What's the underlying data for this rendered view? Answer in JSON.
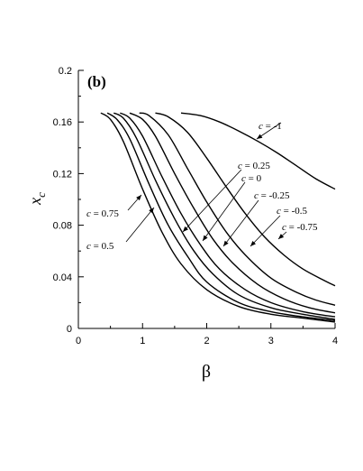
{
  "panel_label": "(b)",
  "chart_data": {
    "type": "line",
    "xlabel": "β",
    "ylabel_main": "x",
    "ylabel_sub": "c",
    "xlim": [
      0,
      4
    ],
    "ylim": [
      0,
      0.2
    ],
    "xticks": [
      "0",
      "1",
      "2",
      "3",
      "4"
    ],
    "yticks": [
      "0",
      "0.04",
      "0.08",
      "0.12",
      "0.16",
      "0.2"
    ],
    "grid": false,
    "series": [
      {
        "name": "c = 0.75",
        "x": [
          0.35,
          0.5,
          0.7,
          1.0,
          1.3,
          1.6,
          2.0,
          2.5,
          3.0,
          3.5,
          4.0
        ],
        "y": [
          0.167,
          0.162,
          0.145,
          0.108,
          0.075,
          0.05,
          0.03,
          0.017,
          0.011,
          0.008,
          0.005
        ]
      },
      {
        "name": "c = 0.5",
        "x": [
          0.45,
          0.6,
          0.8,
          1.1,
          1.4,
          1.7,
          2.0,
          2.5,
          3.0,
          3.5,
          4.0
        ],
        "y": [
          0.167,
          0.162,
          0.147,
          0.112,
          0.08,
          0.056,
          0.036,
          0.02,
          0.013,
          0.009,
          0.006
        ]
      },
      {
        "name": "c = 0.25",
        "x": [
          0.55,
          0.7,
          0.9,
          1.2,
          1.5,
          1.8,
          2.1,
          2.5,
          3.0,
          3.5,
          4.0
        ],
        "y": [
          0.167,
          0.163,
          0.148,
          0.115,
          0.085,
          0.06,
          0.042,
          0.026,
          0.016,
          0.011,
          0.007
        ]
      },
      {
        "name": "c = 0",
        "x": [
          0.65,
          0.8,
          1.0,
          1.3,
          1.6,
          1.9,
          2.2,
          2.6,
          3.0,
          3.5,
          4.0
        ],
        "y": [
          0.167,
          0.163,
          0.149,
          0.118,
          0.089,
          0.065,
          0.046,
          0.03,
          0.02,
          0.013,
          0.009
        ]
      },
      {
        "name": "c = -0.25",
        "x": [
          0.8,
          1.0,
          1.2,
          1.5,
          1.8,
          2.1,
          2.4,
          2.8,
          3.2,
          3.6,
          4.0
        ],
        "y": [
          0.167,
          0.162,
          0.149,
          0.12,
          0.093,
          0.069,
          0.051,
          0.034,
          0.023,
          0.016,
          0.012
        ]
      },
      {
        "name": "c = -0.5",
        "x": [
          0.95,
          1.1,
          1.4,
          1.7,
          2.0,
          2.3,
          2.6,
          3.0,
          3.4,
          3.7,
          4.0
        ],
        "y": [
          0.167,
          0.165,
          0.15,
          0.124,
          0.098,
          0.075,
          0.057,
          0.039,
          0.028,
          0.022,
          0.018
        ]
      },
      {
        "name": "c = -0.75",
        "x": [
          1.2,
          1.4,
          1.7,
          2.0,
          2.3,
          2.6,
          2.9,
          3.2,
          3.5,
          3.8,
          4.0
        ],
        "y": [
          0.167,
          0.164,
          0.152,
          0.132,
          0.11,
          0.089,
          0.071,
          0.057,
          0.046,
          0.038,
          0.033
        ]
      },
      {
        "name": "c = -1",
        "x": [
          1.6,
          1.9,
          2.2,
          2.5,
          2.8,
          3.1,
          3.4,
          3.7,
          4.0
        ],
        "y": [
          0.167,
          0.165,
          0.16,
          0.153,
          0.145,
          0.136,
          0.126,
          0.116,
          0.108
        ]
      }
    ],
    "annotations": [
      {
        "text": "c = -1"
      },
      {
        "text": "c = 0.25"
      },
      {
        "text": "c = 0"
      },
      {
        "text": "c = -0.25"
      },
      {
        "text": "c = -0.5"
      },
      {
        "text": "c = -0.75"
      },
      {
        "text": "c = 0.75"
      },
      {
        "text": "c = 0.5"
      }
    ]
  }
}
